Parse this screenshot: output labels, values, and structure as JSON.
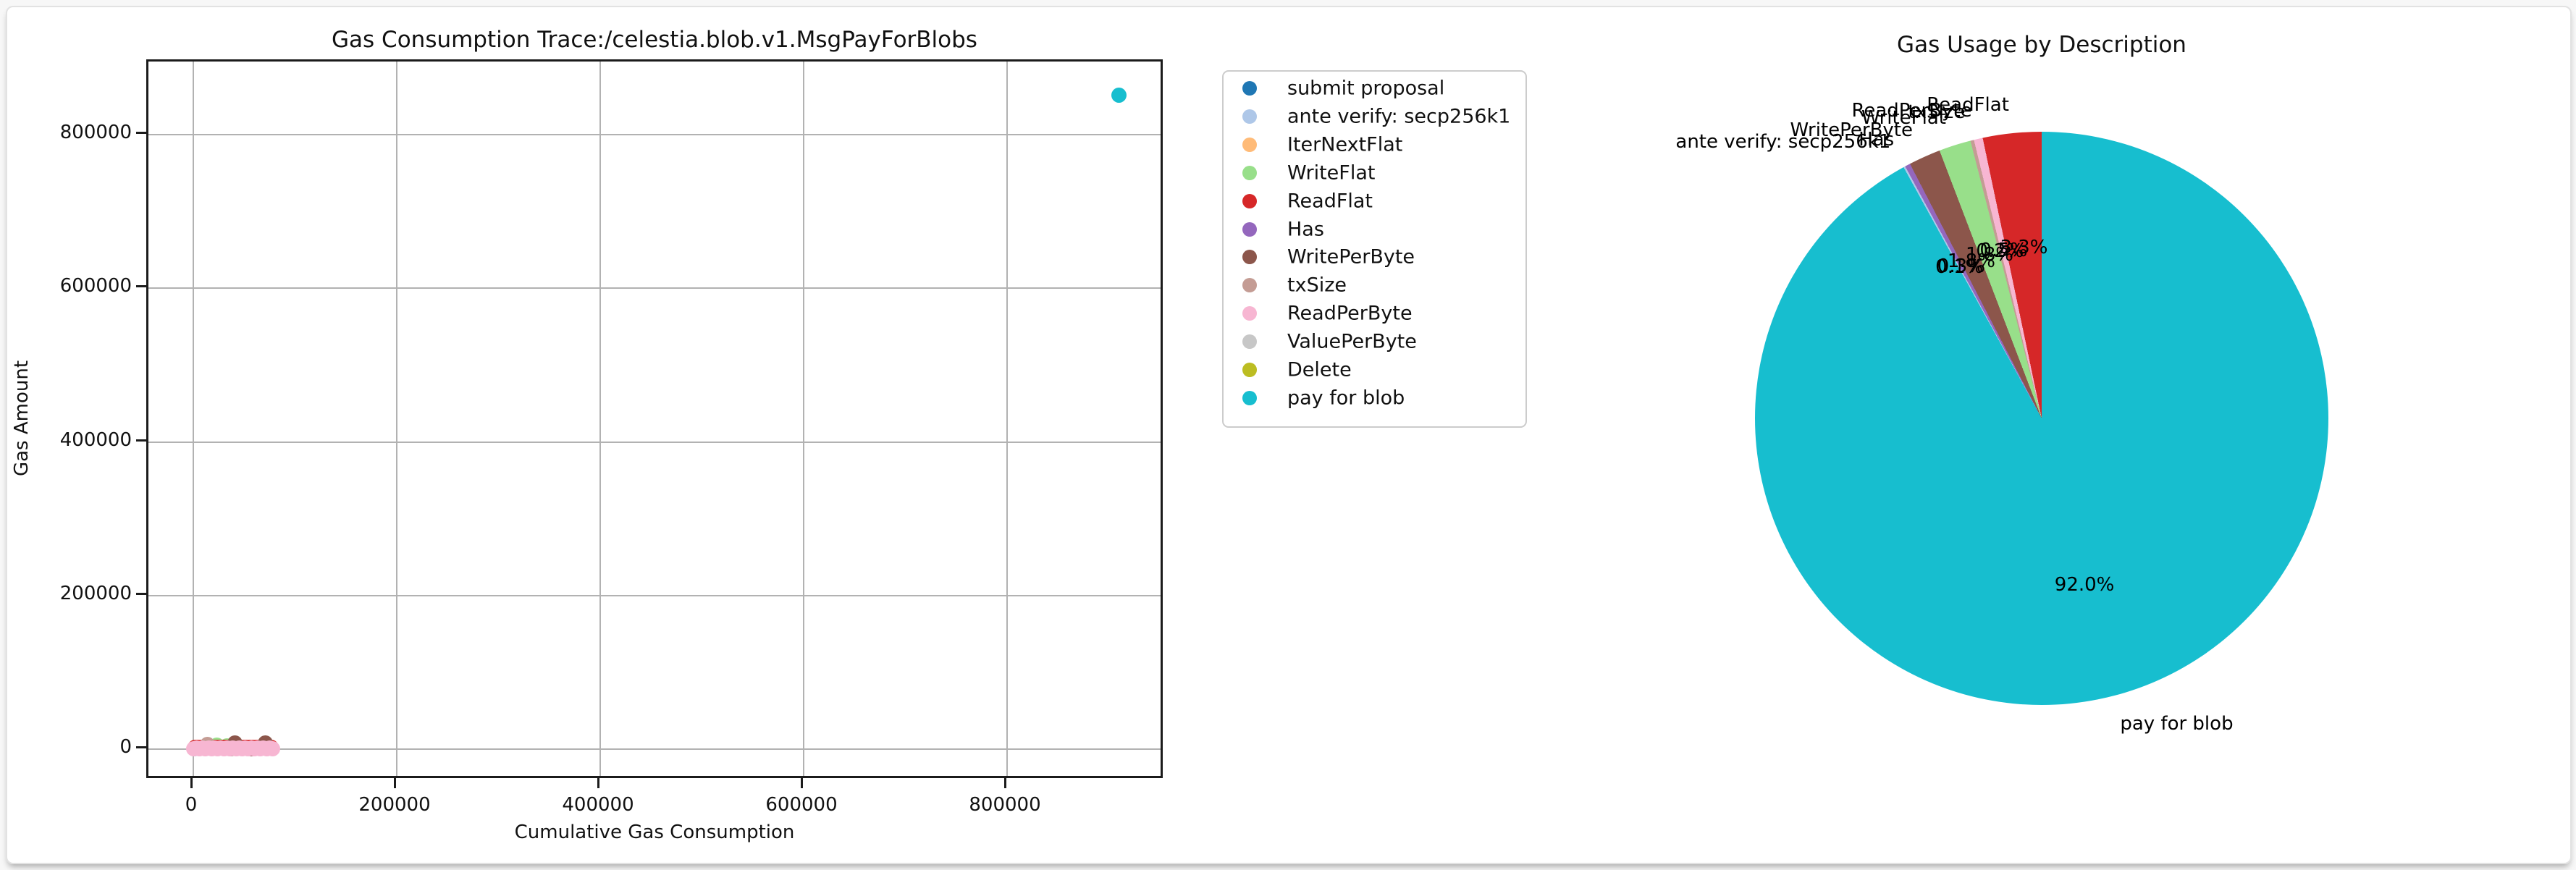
{
  "window": {
    "background": "#f7f7f7",
    "card_background": "#ffffff",
    "card_border": "#e2e2e2",
    "grid_color": "#b2b2b2",
    "spine_color": "#1b1b1b"
  },
  "legend": {
    "items": [
      {
        "label": "submit proposal",
        "color": "#1f77b4"
      },
      {
        "label": "ante verify: secp256k1",
        "color": "#aec7e8"
      },
      {
        "label": "IterNextFlat",
        "color": "#ffbb78"
      },
      {
        "label": "WriteFlat",
        "color": "#98df8a"
      },
      {
        "label": "ReadFlat",
        "color": "#d62728"
      },
      {
        "label": "Has",
        "color": "#9467bd"
      },
      {
        "label": "WritePerByte",
        "color": "#8c564b"
      },
      {
        "label": "txSize",
        "color": "#c49c94"
      },
      {
        "label": "ReadPerByte",
        "color": "#f7b6d2"
      },
      {
        "label": "ValuePerByte",
        "color": "#c7c7c7"
      },
      {
        "label": "Delete",
        "color": "#bcbd22"
      },
      {
        "label": "pay for blob",
        "color": "#17becf"
      }
    ]
  },
  "chart_data": [
    {
      "type": "scatter",
      "title": "Gas Consumption Trace:/celestia.blob.v1.MsgPayForBlobs",
      "xlabel": "Cumulative Gas Consumption",
      "ylabel": "Gas Amount",
      "xticks": [
        0,
        200000,
        400000,
        600000,
        800000
      ],
      "yticks": [
        0,
        200000,
        400000,
        600000,
        800000
      ],
      "xlim": [
        -44000,
        956000
      ],
      "ylim": [
        -40000,
        895000
      ],
      "grid": true,
      "legend_position": "outside-right",
      "series": [
        {
          "name": "submit proposal",
          "color": "#1f77b4",
          "points": []
        },
        {
          "name": "ante verify: secp256k1",
          "color": "#aec7e8",
          "points": [
            [
              800,
              900
            ]
          ]
        },
        {
          "name": "IterNextFlat",
          "color": "#ffbb78",
          "points": []
        },
        {
          "name": "WriteFlat",
          "color": "#98df8a",
          "points": [
            [
              23000,
              5000
            ],
            [
              33000,
              4600
            ]
          ]
        },
        {
          "name": "ReadFlat",
          "color": "#d62728",
          "points": [
            [
              1500,
              2600
            ],
            [
              4500,
              2700
            ],
            [
              7500,
              2600
            ],
            [
              10500,
              2700
            ],
            [
              13500,
              2600
            ],
            [
              16500,
              2700
            ],
            [
              19500,
              2600
            ],
            [
              22500,
              2700
            ],
            [
              25500,
              2600
            ],
            [
              28500,
              2700
            ],
            [
              31500,
              2600
            ],
            [
              34500,
              2700
            ],
            [
              37500,
              2600
            ],
            [
              40500,
              2700
            ],
            [
              43500,
              2600
            ],
            [
              46500,
              2700
            ],
            [
              49500,
              2600
            ],
            [
              52500,
              2700
            ],
            [
              55500,
              2600
            ],
            [
              58500,
              2700
            ],
            [
              61500,
              2600
            ],
            [
              64500,
              2700
            ],
            [
              67500,
              2600
            ],
            [
              70500,
              2700
            ],
            [
              73500,
              2600
            ],
            [
              76500,
              2700
            ]
          ]
        },
        {
          "name": "Has",
          "color": "#9467bd",
          "points": [
            [
              46000,
              1400
            ]
          ]
        },
        {
          "name": "WritePerByte",
          "color": "#8c564b",
          "points": [
            [
              37000,
              500
            ],
            [
              41000,
              8000
            ],
            [
              57000,
              500
            ],
            [
              71000,
              8000
            ]
          ]
        },
        {
          "name": "txSize",
          "color": "#c49c94",
          "points": [
            [
              14000,
              6000
            ]
          ]
        },
        {
          "name": "ReadPerByte",
          "color": "#f7b6d2",
          "points": [
            [
              0,
              800
            ],
            [
              3000,
              1400
            ],
            [
              6000,
              800
            ],
            [
              9000,
              1400
            ],
            [
              12000,
              800
            ],
            [
              15000,
              1400
            ],
            [
              18000,
              800
            ],
            [
              21000,
              1400
            ],
            [
              24000,
              800
            ],
            [
              27000,
              1400
            ],
            [
              30000,
              800
            ],
            [
              33000,
              1400
            ],
            [
              36000,
              800
            ],
            [
              39000,
              1400
            ],
            [
              42000,
              800
            ],
            [
              45000,
              1400
            ],
            [
              48000,
              800
            ],
            [
              51000,
              1400
            ],
            [
              54000,
              800
            ],
            [
              57000,
              1400
            ],
            [
              60000,
              800
            ],
            [
              63000,
              1400
            ],
            [
              66000,
              800
            ],
            [
              69000,
              1400
            ],
            [
              72000,
              800
            ],
            [
              75000,
              1400
            ],
            [
              78000,
              800
            ]
          ]
        },
        {
          "name": "ValuePerByte",
          "color": "#c7c7c7",
          "points": []
        },
        {
          "name": "Delete",
          "color": "#bcbd22",
          "points": []
        },
        {
          "name": "pay for blob",
          "color": "#17becf",
          "points": [
            [
              910000,
              851000
            ]
          ]
        }
      ]
    },
    {
      "type": "pie",
      "title": "Gas Usage by Description",
      "direction": "clockwise-from-top",
      "slices": [
        {
          "label": "pay for blob",
          "pct": 92.0,
          "pct_text": "92.0%",
          "color": "#17becf",
          "show_name": true,
          "show_pct": true
        },
        {
          "label": "ante verify: secp256k1",
          "pct": 0.1,
          "pct_text": "0.1%",
          "color": "#aec7e8",
          "show_name": true,
          "show_pct": true
        },
        {
          "label": "Has",
          "pct": 0.3,
          "pct_text": "0.3%",
          "color": "#9467bd",
          "show_name": true,
          "show_pct": true
        },
        {
          "label": "WritePerByte",
          "pct": 1.8,
          "pct_text": "1.8%",
          "color": "#8c564b",
          "show_name": true,
          "show_pct": true
        },
        {
          "label": "WriteFlat",
          "pct": 1.8,
          "pct_text": "1.8%",
          "color": "#98df8a",
          "show_name": true,
          "show_pct": true
        },
        {
          "label": "txSize",
          "pct": 0.2,
          "pct_text": "0.2%",
          "color": "#c49c94",
          "show_name": true,
          "show_pct": true
        },
        {
          "label": "ReadPerByte",
          "pct": 0.5,
          "pct_text": "0.5%",
          "color": "#f7b6d2",
          "show_name": true,
          "show_pct": true
        },
        {
          "label": "ReadFlat",
          "pct": 3.3,
          "pct_text": "3.3%",
          "color": "#d62728",
          "show_name": true,
          "show_pct": true
        },
        {
          "label": "submit proposal",
          "pct": 0.0,
          "pct_text": "",
          "color": "#1f77b4",
          "show_name": false,
          "show_pct": false
        },
        {
          "label": "IterNextFlat",
          "pct": 0.0,
          "pct_text": "",
          "color": "#ffbb78",
          "show_name": false,
          "show_pct": false
        },
        {
          "label": "ValuePerByte",
          "pct": 0.0,
          "pct_text": "",
          "color": "#c7c7c7",
          "show_name": false,
          "show_pct": false
        },
        {
          "label": "Delete",
          "pct": 0.0,
          "pct_text": "",
          "color": "#bcbd22",
          "show_name": false,
          "show_pct": false
        }
      ]
    }
  ]
}
